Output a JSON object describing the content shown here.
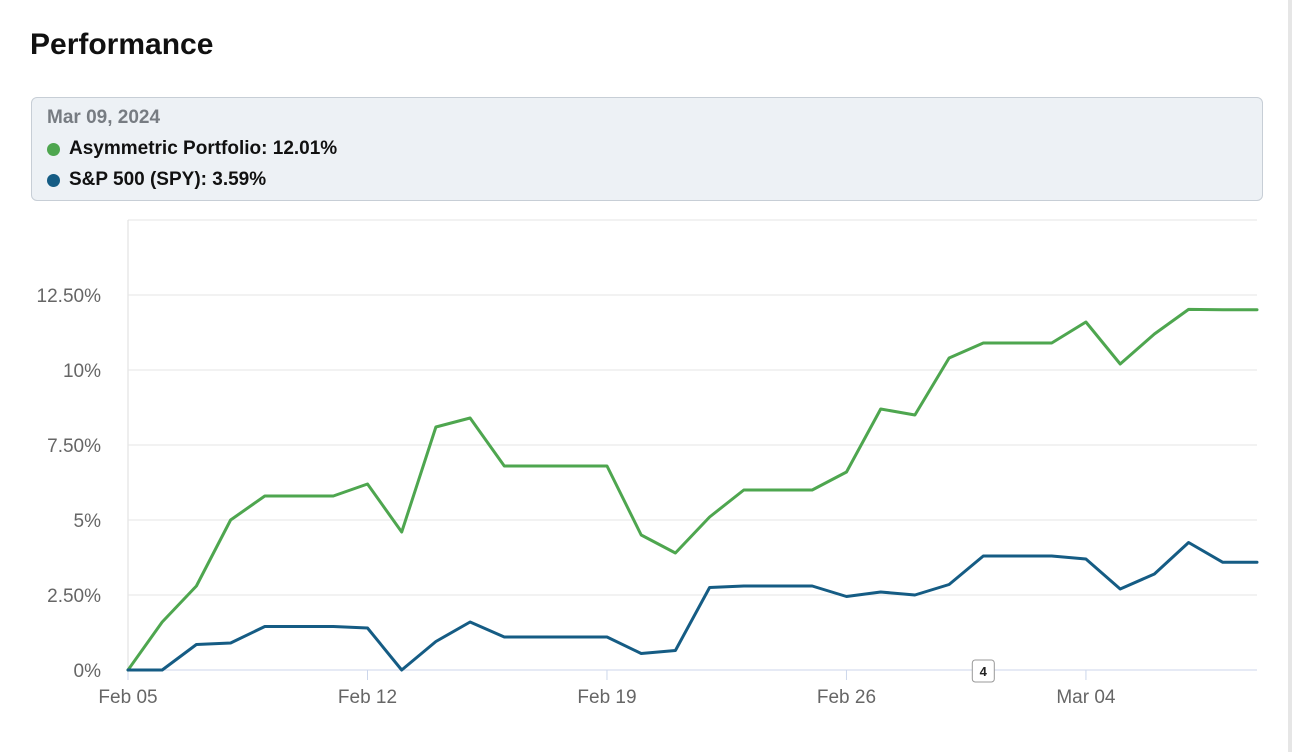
{
  "page": {
    "title": "Performance"
  },
  "tooltip": {
    "date": "Mar 09, 2024",
    "rows": [
      {
        "text": "Asymmetric Portfolio: 12.01%",
        "color": "#4ea64f"
      },
      {
        "text": "S&P 500 (SPY): 3.59%",
        "color": "#155c84"
      }
    ]
  },
  "badge": {
    "label": "4",
    "x": 25
  },
  "chart_data": {
    "type": "line",
    "title": "",
    "xlabel": "",
    "ylabel": "",
    "x_days": [
      0,
      1,
      2,
      3,
      4,
      5,
      6,
      7,
      8,
      9,
      10,
      11,
      12,
      13,
      14,
      15,
      16,
      17,
      18,
      19,
      20,
      21,
      22,
      23,
      24,
      25,
      26,
      27,
      28,
      29,
      30,
      31,
      32,
      33
    ],
    "x_ticks": [
      {
        "x": 0,
        "label": "Feb 05"
      },
      {
        "x": 7,
        "label": "Feb 12"
      },
      {
        "x": 14,
        "label": "Feb 19"
      },
      {
        "x": 21,
        "label": "Feb 26"
      },
      {
        "x": 28,
        "label": "Mar 04"
      }
    ],
    "y_ticks": [
      {
        "value": 0,
        "label": "0%"
      },
      {
        "value": 2.5,
        "label": "2.50%"
      },
      {
        "value": 5,
        "label": "5%"
      },
      {
        "value": 7.5,
        "label": "7.50%"
      },
      {
        "value": 10,
        "label": "10%"
      },
      {
        "value": 12.5,
        "label": "12.50%"
      }
    ],
    "ylim": [
      0,
      15
    ],
    "xlim": [
      0,
      33
    ],
    "grid": true,
    "series": [
      {
        "name": "Asymmetric Portfolio",
        "color": "#4ea64f",
        "values": [
          0,
          1.6,
          2.8,
          5.0,
          5.8,
          5.8,
          5.8,
          6.2,
          4.6,
          8.1,
          8.4,
          6.8,
          6.8,
          6.8,
          6.8,
          4.5,
          3.9,
          5.1,
          6.0,
          6.0,
          6.0,
          6.6,
          8.7,
          8.5,
          10.4,
          10.9,
          10.9,
          10.9,
          11.6,
          10.2,
          11.2,
          12.02,
          12.01,
          12.01
        ]
      },
      {
        "name": "S&P 500 (SPY)",
        "color": "#155c84",
        "values": [
          0,
          0,
          0.85,
          0.9,
          1.45,
          1.45,
          1.45,
          1.4,
          0,
          0.95,
          1.6,
          1.1,
          1.1,
          1.1,
          1.1,
          0.55,
          0.65,
          2.75,
          2.8,
          2.8,
          2.8,
          2.45,
          2.6,
          2.5,
          2.85,
          3.8,
          3.8,
          3.8,
          3.7,
          2.7,
          3.2,
          4.25,
          3.59,
          3.59
        ]
      }
    ]
  }
}
